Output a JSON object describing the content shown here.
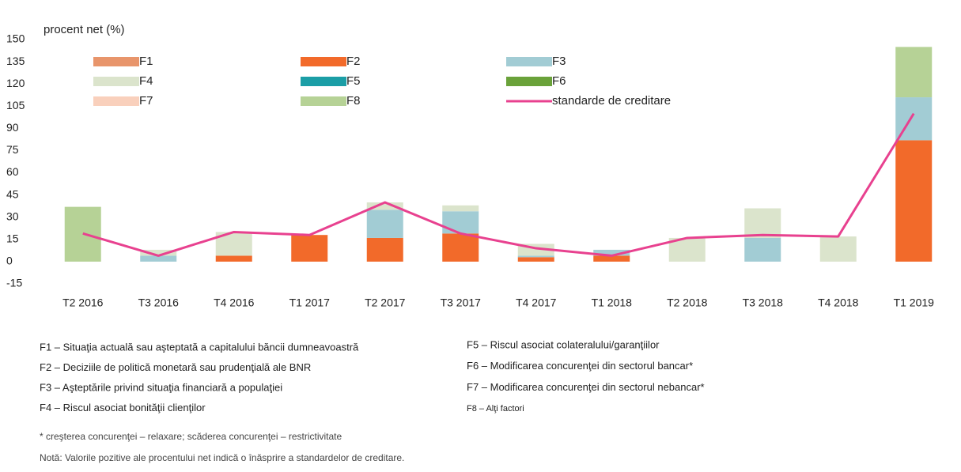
{
  "chart_data": {
    "type": "bar",
    "stacked": true,
    "y_label": "procent net (%)",
    "categories": [
      "T2 2016",
      "T3 2016",
      "T4 2016",
      "T1 2017",
      "T2 2017",
      "T3 2017",
      "T4 2017",
      "T1 2018",
      "T2 2018",
      "T3 2018",
      "T4 2018",
      "T1 2019"
    ],
    "ylim": [
      -15,
      150
    ],
    "yticks": [
      -15,
      0,
      15,
      30,
      45,
      60,
      75,
      90,
      105,
      120,
      135,
      150
    ],
    "grid": false,
    "series": [
      {
        "name": "F1",
        "color": "#e8956b",
        "values": [
          0,
          0,
          0,
          0,
          0,
          0,
          0,
          0,
          0,
          0,
          0,
          0
        ]
      },
      {
        "name": "F2",
        "color": "#f26a2a",
        "values": [
          0,
          0,
          4,
          18,
          16,
          19,
          3,
          4,
          0,
          0,
          0,
          82
        ]
      },
      {
        "name": "F3",
        "color": "#a2ccd4",
        "values": [
          0,
          4,
          0,
          0,
          19,
          15,
          1,
          4,
          0,
          16,
          0,
          29
        ]
      },
      {
        "name": "F4",
        "color": "#dbe4cc",
        "values": [
          0,
          4,
          16,
          0,
          5,
          4,
          8,
          0,
          16,
          20,
          17,
          0
        ]
      },
      {
        "name": "F5",
        "color": "#1b9ea6",
        "values": [
          0,
          0,
          0,
          0,
          0,
          0,
          0,
          0,
          0,
          0,
          0,
          0
        ]
      },
      {
        "name": "F6",
        "color": "#6aa23a",
        "values": [
          0,
          0,
          0,
          0,
          0,
          0,
          0,
          0,
          0,
          0,
          0,
          0
        ]
      },
      {
        "name": "F7",
        "color": "#f9d0bc",
        "values": [
          0,
          0,
          0,
          0,
          0,
          0,
          0,
          0,
          0,
          0,
          0,
          0
        ]
      },
      {
        "name": "F8",
        "color": "#b6d296",
        "values": [
          37,
          0,
          0,
          0,
          0,
          0,
          0,
          0,
          0,
          0,
          0,
          34
        ]
      },
      {
        "name": "standarde de creditare",
        "type": "line",
        "color": "#e8418f",
        "values": [
          19,
          4,
          20,
          18,
          40,
          19,
          9,
          4,
          16,
          18,
          17,
          100
        ]
      }
    ],
    "notes_left": [
      "F1 – Situaţia actuală sau aşteptată a capitalului băncii dumneavoastră",
      "F2 – Deciziile de politică monetară sau prudenţială ale BNR",
      "F3 – Aşteptările privind situaţia financiară a populaţiei",
      "F4 – Riscul asociat bonităţii clienţilor"
    ],
    "notes_right": [
      "F5 – Riscul asociat colateralului/garanţiilor",
      "F6 – Modificarea concurenţei din sectorul bancar*",
      "F7 – Modificarea concurenţei din sectorul nebancar*",
      "F8 – Alţi factori"
    ],
    "footnote": "* creşterea concurenţei – relaxare; scăderea concurenţei – restrictivitate",
    "note": "Notă: Valorile pozitive ale procentului net indică o înăsprire a standardelor de creditare."
  }
}
